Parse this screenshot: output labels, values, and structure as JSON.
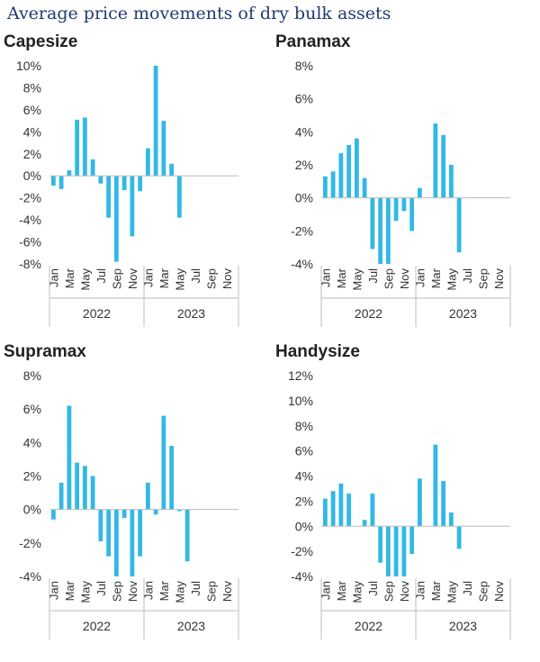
{
  "title": "Average price movements of dry bulk assets",
  "colors": {
    "bar": "#33b8e6",
    "axis": "#bdbdbd",
    "text": "#333333",
    "title": "#1f3a73"
  },
  "chart_data": [
    {
      "type": "bar",
      "title": "Capesize",
      "categories": [
        "Jan",
        "Feb",
        "Mar",
        "Apr",
        "May",
        "Jun",
        "Jul",
        "Aug",
        "Sep",
        "Oct",
        "Nov",
        "Dec",
        "Jan",
        "Feb",
        "Mar",
        "Apr",
        "May",
        "Jun",
        "Jul",
        "Aug",
        "Sep",
        "Oct",
        "Nov",
        "Dec"
      ],
      "tick_labels": [
        "Jan",
        "Mar",
        "May",
        "Jul",
        "Sep",
        "Nov",
        "Jan",
        "Mar",
        "May",
        "Jul",
        "Sep",
        "Nov"
      ],
      "years": [
        "2022",
        "2023"
      ],
      "values": [
        -0.9,
        -1.2,
        0.5,
        5.1,
        5.3,
        1.5,
        -0.7,
        -3.8,
        -7.8,
        -1.3,
        -5.5,
        -1.4,
        2.5,
        10.0,
        5.0,
        1.1,
        -3.8,
        null,
        null,
        null,
        null,
        null,
        null,
        null
      ],
      "yticks": [
        -8,
        -6,
        -4,
        -2,
        0,
        2,
        4,
        6,
        8,
        10
      ],
      "ylim": [
        -8,
        10
      ],
      "unit": "%"
    },
    {
      "type": "bar",
      "title": "Panamax",
      "categories": [
        "Jan",
        "Feb",
        "Mar",
        "Apr",
        "May",
        "Jun",
        "Jul",
        "Aug",
        "Sep",
        "Oct",
        "Nov",
        "Dec",
        "Jan",
        "Feb",
        "Mar",
        "Apr",
        "May",
        "Jun",
        "Jul",
        "Aug",
        "Sep",
        "Oct",
        "Nov",
        "Dec"
      ],
      "tick_labels": [
        "Jan",
        "Mar",
        "May",
        "Jul",
        "Sep",
        "Nov",
        "Jan",
        "Mar",
        "May",
        "Jul",
        "Sep",
        "Nov"
      ],
      "years": [
        "2022",
        "2023"
      ],
      "values": [
        1.3,
        1.6,
        2.7,
        3.2,
        3.6,
        1.2,
        -3.1,
        -4.0,
        -4.0,
        -1.4,
        -0.8,
        -2.0,
        0.6,
        null,
        4.5,
        3.8,
        2.0,
        -3.3,
        null,
        null,
        null,
        null,
        null,
        null
      ],
      "yticks": [
        -4,
        -2,
        0,
        2,
        4,
        6,
        8
      ],
      "ylim": [
        -4,
        8
      ],
      "unit": "%"
    },
    {
      "type": "bar",
      "title": "Supramax",
      "categories": [
        "Jan",
        "Feb",
        "Mar",
        "Apr",
        "May",
        "Jun",
        "Jul",
        "Aug",
        "Sep",
        "Oct",
        "Nov",
        "Dec",
        "Jan",
        "Feb",
        "Mar",
        "Apr",
        "May",
        "Jun",
        "Jul",
        "Aug",
        "Sep",
        "Oct",
        "Nov",
        "Dec"
      ],
      "tick_labels": [
        "Jan",
        "Mar",
        "May",
        "Jul",
        "Sep",
        "Nov",
        "Jan",
        "Mar",
        "May",
        "Jul",
        "Sep",
        "Nov"
      ],
      "years": [
        "2022",
        "2023"
      ],
      "values": [
        -0.6,
        1.6,
        6.2,
        2.8,
        2.6,
        2.0,
        -1.9,
        -2.8,
        -4.0,
        -0.5,
        -4.0,
        -2.8,
        1.6,
        -0.3,
        5.6,
        3.8,
        -0.1,
        -3.1,
        null,
        null,
        null,
        null,
        null,
        null
      ],
      "yticks": [
        -4,
        -2,
        0,
        2,
        4,
        6,
        8
      ],
      "ylim": [
        -4,
        8
      ],
      "unit": "%"
    },
    {
      "type": "bar",
      "title": "Handysize",
      "categories": [
        "Jan",
        "Feb",
        "Mar",
        "Apr",
        "May",
        "Jun",
        "Jul",
        "Aug",
        "Sep",
        "Oct",
        "Nov",
        "Dec",
        "Jan",
        "Feb",
        "Mar",
        "Apr",
        "May",
        "Jun",
        "Jul",
        "Aug",
        "Sep",
        "Oct",
        "Nov",
        "Dec"
      ],
      "tick_labels": [
        "Jan",
        "Mar",
        "May",
        "Jul",
        "Sep",
        "Nov",
        "Jan",
        "Mar",
        "May",
        "Jul",
        "Sep",
        "Nov"
      ],
      "years": [
        "2022",
        "2023"
      ],
      "values": [
        2.2,
        2.8,
        3.4,
        2.6,
        null,
        0.5,
        2.6,
        -2.9,
        -4.0,
        -4.0,
        -4.0,
        -2.2,
        3.8,
        null,
        6.5,
        3.6,
        1.1,
        -1.8,
        null,
        null,
        null,
        null,
        null,
        null
      ],
      "yticks": [
        -4,
        -2,
        0,
        2,
        4,
        6,
        8,
        10,
        12
      ],
      "ylim": [
        -4,
        12
      ],
      "unit": "%"
    }
  ]
}
